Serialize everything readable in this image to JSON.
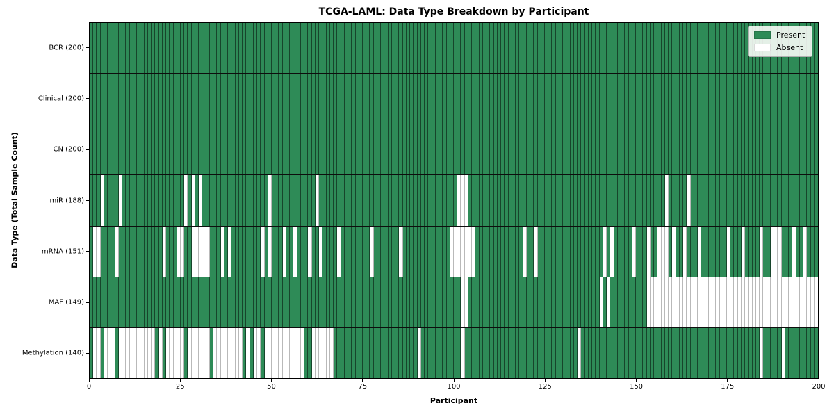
{
  "title": "TCGA-LAML: Data Type Breakdown by Participant",
  "x_axis": {
    "label": "Participant",
    "min": 0,
    "max": 200,
    "ticks": [
      0,
      25,
      50,
      75,
      100,
      125,
      150,
      175,
      200
    ]
  },
  "y_axis": {
    "label": "Data Type (Total Sample Count)"
  },
  "legend": {
    "present_label": "Present",
    "absent_label": "Absent"
  },
  "colors": {
    "present": "#2e8b57",
    "absent": "#ffffff",
    "present_edge": "rgba(0,0,0,0.5)",
    "absent_edge": "#b9b9b9",
    "spine": "#000000"
  },
  "chart_data": {
    "type": "heatmap",
    "title": "TCGA-LAML: Data Type Breakdown by Participant",
    "xlabel": "Participant",
    "ylabel": "Data Type (Total Sample Count)",
    "xlim": [
      0,
      200
    ],
    "n_participants": 200,
    "legend": [
      "Present",
      "Absent"
    ],
    "legend_position": "upper right",
    "rows": [
      {
        "label": "BCR (200)",
        "data_type": "BCR",
        "total_samples": 200,
        "absent_participants": []
      },
      {
        "label": "Clinical (200)",
        "data_type": "Clinical",
        "total_samples": 200,
        "absent_participants": []
      },
      {
        "label": "CN (200)",
        "data_type": "CN",
        "total_samples": 200,
        "absent_participants": []
      },
      {
        "label": "miR (188)",
        "data_type": "miR",
        "total_samples": 188,
        "absent_participants": [
          3,
          8,
          26,
          28,
          30,
          49,
          62,
          101,
          102,
          103,
          158,
          164
        ]
      },
      {
        "label": "mRNA (151)",
        "data_type": "mRNA",
        "total_samples": 151,
        "absent_participants": [
          1,
          2,
          7,
          20,
          24,
          25,
          28,
          29,
          30,
          31,
          32,
          36,
          38,
          47,
          49,
          53,
          56,
          60,
          63,
          68,
          77,
          85,
          99,
          100,
          101,
          102,
          103,
          104,
          105,
          119,
          122,
          141,
          143,
          149,
          153,
          156,
          157,
          158,
          160,
          163,
          167,
          175,
          179,
          184,
          187,
          188,
          189,
          193,
          196
        ]
      },
      {
        "label": "MAF (149)",
        "data_type": "MAF",
        "total_samples": 149,
        "absent_participants": [
          102,
          103,
          140,
          142,
          153,
          154,
          155,
          156,
          157,
          158,
          159,
          160,
          161,
          162,
          163,
          164,
          165,
          166,
          167,
          168,
          169,
          170,
          171,
          172,
          173,
          174,
          175,
          176,
          177,
          178,
          179,
          180,
          181,
          182,
          183,
          184,
          185,
          186,
          187,
          188,
          189,
          190,
          191,
          192,
          193,
          194,
          195,
          196,
          197,
          198,
          199
        ]
      },
      {
        "label": "Methylation (140)",
        "data_type": "Methylation",
        "total_samples": 140,
        "absent_participants": [
          1,
          2,
          4,
          5,
          6,
          8,
          9,
          10,
          11,
          12,
          13,
          14,
          15,
          16,
          17,
          19,
          21,
          22,
          23,
          24,
          25,
          27,
          28,
          29,
          30,
          31,
          32,
          34,
          35,
          36,
          37,
          38,
          39,
          40,
          41,
          43,
          45,
          46,
          48,
          49,
          50,
          51,
          52,
          53,
          54,
          55,
          56,
          57,
          58,
          61,
          62,
          63,
          64,
          65,
          66,
          90,
          102,
          134,
          184,
          190
        ]
      }
    ]
  }
}
